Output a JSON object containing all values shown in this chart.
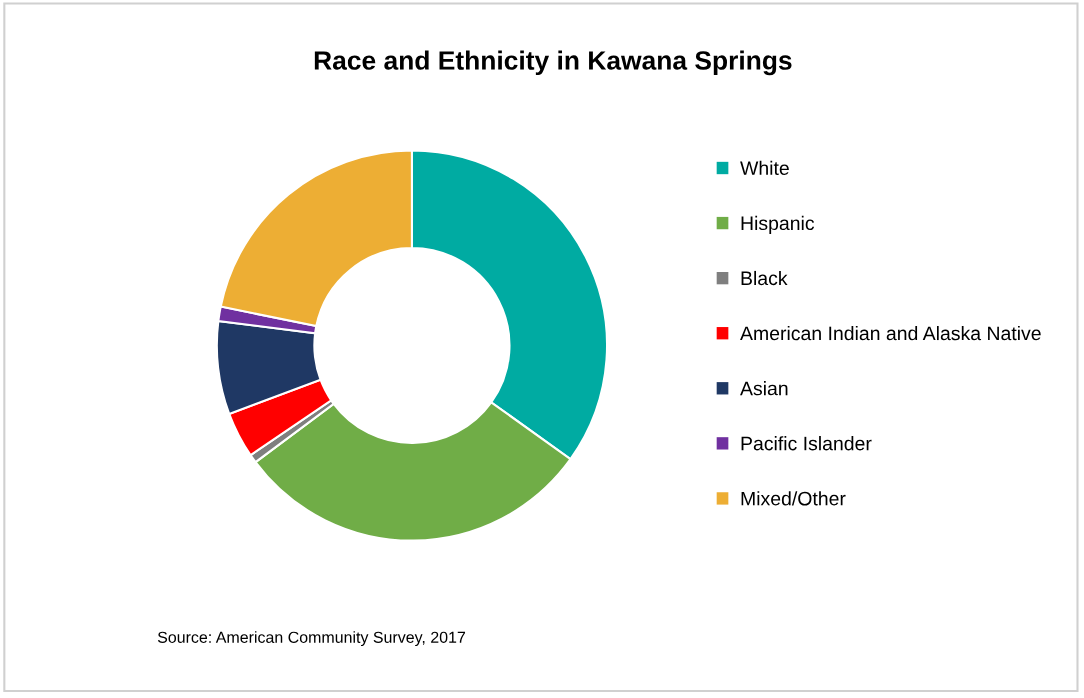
{
  "chart_data": {
    "type": "donut",
    "title": "Race and Ethnicity in Kawana Springs",
    "categories": [
      "White",
      "Hispanic",
      "Black",
      "American Indian and Alaska Native",
      "Asian",
      "Pacific Islander",
      "Mixed/Other"
    ],
    "values": [
      34.9,
      29.9,
      0.7,
      3.8,
      7.7,
      1.2,
      21.8
    ],
    "colors": [
      "#00aba2",
      "#70ad47",
      "#7f7f7f",
      "#ff0000",
      "#1f3864",
      "#7030a0",
      "#edae34"
    ],
    "legend": "right",
    "annotations": [
      "Source: American Community Survey, 2017"
    ]
  }
}
